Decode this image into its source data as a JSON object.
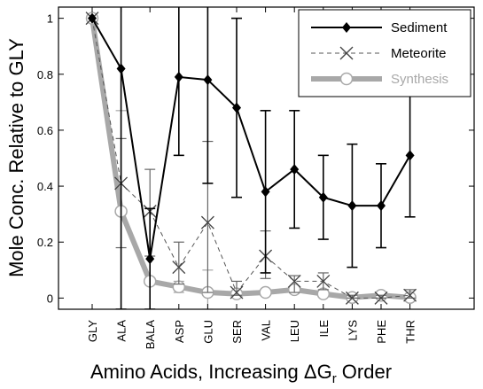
{
  "chart_data": {
    "type": "line",
    "xlabel": "Amino Acids, Increasing ΔGr Order",
    "xlabel_parts": {
      "pre": "Amino Acids, Increasing ",
      "delta": "Δ",
      "g": "G",
      "sub": "r",
      "post": " Order"
    },
    "ylabel": "Mole Conc. Relative to GLY",
    "ylim": [
      -0.04,
      1.04
    ],
    "y_ticks": [
      0,
      0.2,
      0.4,
      0.6,
      0.8,
      1
    ],
    "y_tick_labels": [
      "0",
      "0.2",
      "0.4",
      "0.6",
      "0.8",
      "1"
    ],
    "categories": [
      "GLY",
      "ALA",
      "BALA",
      "ASP",
      "GLU",
      "SER",
      "VAL",
      "LEU",
      "ILE",
      "LYS",
      "PHE",
      "THR"
    ],
    "grid": false,
    "legend_position": "top-right",
    "series": [
      {
        "name": "Sediment",
        "color": "#000000",
        "marker": "diamond",
        "line": "solid",
        "values": [
          1.0,
          0.82,
          0.14,
          0.79,
          0.78,
          0.68,
          0.38,
          0.46,
          0.36,
          0.33,
          0.33,
          0.51
        ],
        "err_low": [
          null,
          -0.04,
          -0.04,
          0.51,
          0.41,
          0.36,
          0.09,
          0.25,
          0.21,
          0.11,
          0.18,
          0.29
        ],
        "err_high": [
          null,
          1.05,
          0.32,
          1.05,
          1.05,
          1.0,
          0.67,
          0.67,
          0.51,
          0.55,
          0.48,
          0.75
        ]
      },
      {
        "name": "Meteorite",
        "color": "#555555",
        "marker": "x",
        "line": "dashed",
        "values": [
          1.0,
          0.41,
          0.31,
          0.11,
          0.27,
          0.02,
          0.15,
          0.06,
          0.06,
          0.0,
          0.0,
          0.01
        ],
        "err_low": [
          null,
          0.18,
          0.15,
          0.05,
          0.02,
          0.01,
          0.07,
          0.02,
          0.03,
          0.0,
          0.0,
          0.0
        ],
        "err_high": [
          null,
          0.57,
          0.46,
          0.2,
          0.56,
          0.06,
          0.24,
          0.08,
          0.09,
          0.01,
          0.01,
          0.03
        ]
      },
      {
        "name": "Synthesis",
        "color": "#a8a8a8",
        "marker": "circle",
        "line": "thick",
        "values": [
          1.0,
          0.31,
          0.06,
          0.04,
          0.02,
          0.015,
          0.02,
          0.03,
          0.015,
          0.002,
          0.01,
          0.002
        ],
        "err_low": [
          null,
          -0.04,
          0.05,
          0.02,
          -0.04,
          0.01,
          0.01,
          0.02,
          0.01,
          0.0,
          0.0,
          0.0
        ],
        "err_high": [
          null,
          0.67,
          0.07,
          0.06,
          0.1,
          0.02,
          0.03,
          0.04,
          0.02,
          0.005,
          0.02,
          0.005
        ]
      }
    ]
  }
}
